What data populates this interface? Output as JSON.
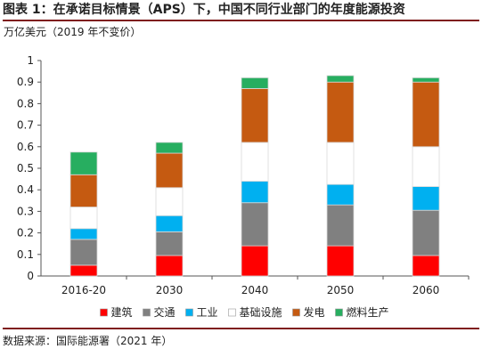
{
  "figure": {
    "title": "图表 1：在承诺目标情景（APS）下，中国不同行业部门的年度能源投资",
    "unit": "万亿美元（2019 年不变价）",
    "source": "数据来源：国际能源署（2021 年）"
  },
  "chart_data": {
    "type": "bar",
    "stacked": true,
    "categories": [
      "2016-20",
      "2030",
      "2040",
      "2050",
      "2060"
    ],
    "series": [
      {
        "name": "建筑",
        "color": "#ff0000",
        "values": [
          0.05,
          0.095,
          0.14,
          0.14,
          0.095
        ]
      },
      {
        "name": "交通",
        "color": "#808080",
        "values": [
          0.12,
          0.11,
          0.2,
          0.19,
          0.21
        ]
      },
      {
        "name": "工业",
        "color": "#00b0f0",
        "values": [
          0.05,
          0.075,
          0.1,
          0.095,
          0.11
        ]
      },
      {
        "name": "基础设施",
        "color": "#ffffff",
        "values": [
          0.1,
          0.13,
          0.18,
          0.195,
          0.185
        ]
      },
      {
        "name": "发电",
        "color": "#c55a11",
        "values": [
          0.15,
          0.16,
          0.25,
          0.28,
          0.3
        ]
      },
      {
        "name": "燃料生产",
        "color": "#27ae60",
        "values": [
          0.105,
          0.05,
          0.05,
          0.03,
          0.02
        ]
      }
    ],
    "yticks": [
      "0",
      "0.1",
      "0.2",
      "0.3",
      "0.4",
      "0.5",
      "0.6",
      "0.7",
      "0.8",
      "0.9",
      "1"
    ],
    "ylim": [
      0,
      1
    ],
    "grid": false,
    "legend_position": "bottom"
  }
}
